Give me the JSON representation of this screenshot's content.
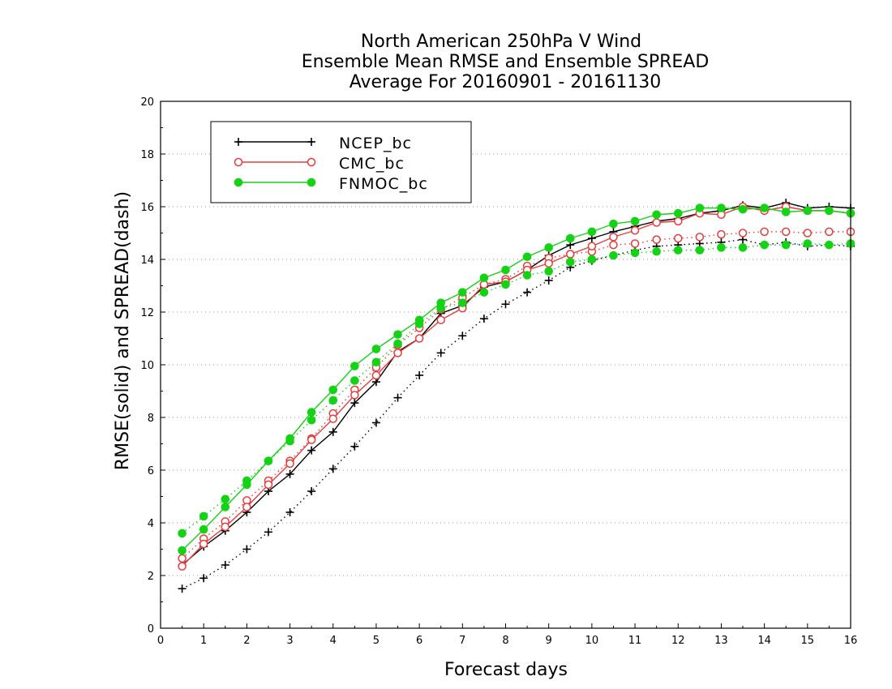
{
  "chart_data": {
    "type": "line",
    "title_lines": [
      "North American 250hPa V Wind",
      "Ensemble Mean RMSE and Ensemble SPREAD",
      "Average For 20160901 - 20161130"
    ],
    "xlabel": "Forecast days",
    "ylabel": "RMSE(solid) and SPREAD(dash)",
    "xlim": [
      0,
      16
    ],
    "ylim": [
      0,
      20
    ],
    "xticks": [
      "0",
      "1",
      "2",
      "3",
      "4",
      "5",
      "6",
      "7",
      "8",
      "9",
      "10",
      "11",
      "12",
      "13",
      "14",
      "15",
      "16"
    ],
    "yticks": [
      "0",
      "2",
      "4",
      "6",
      "8",
      "10",
      "12",
      "14",
      "16",
      "18",
      "20"
    ],
    "grid": true,
    "legend_position": "top-left",
    "x": [
      0.5,
      1,
      1.5,
      2,
      2.5,
      3,
      3.5,
      4,
      4.5,
      5,
      5.5,
      6,
      6.5,
      7,
      7.5,
      8,
      8.5,
      9,
      9.5,
      10,
      10.5,
      11,
      11.5,
      12,
      12.5,
      13,
      13.5,
      14,
      14.5,
      15,
      15.5,
      16
    ],
    "series": [
      {
        "name": "NCEP_bc",
        "color": "#000000",
        "marker": "plus",
        "rmse": [
          2.4,
          3.1,
          3.7,
          4.4,
          5.2,
          5.85,
          6.75,
          7.45,
          8.55,
          9.35,
          10.5,
          11.0,
          11.95,
          12.25,
          12.95,
          13.15,
          13.6,
          14.15,
          14.55,
          14.8,
          15.05,
          15.25,
          15.45,
          15.55,
          15.75,
          15.85,
          16.05,
          15.95,
          16.15,
          15.95,
          16.0,
          15.95
        ],
        "spread": [
          1.5,
          1.9,
          2.4,
          3.0,
          3.65,
          4.4,
          5.2,
          6.05,
          6.9,
          7.8,
          8.75,
          9.6,
          10.45,
          11.1,
          11.75,
          12.3,
          12.75,
          13.2,
          13.7,
          13.95,
          14.15,
          14.35,
          14.5,
          14.55,
          14.6,
          14.65,
          14.75,
          14.55,
          14.65,
          14.5,
          14.55,
          14.5
        ]
      },
      {
        "name": "CMC_bc",
        "color": "#e83c3c",
        "marker": "open-circle",
        "rmse": [
          2.35,
          3.2,
          3.85,
          4.6,
          5.45,
          6.25,
          7.15,
          7.95,
          8.85,
          9.6,
          10.45,
          11.0,
          11.7,
          12.15,
          13.05,
          13.15,
          13.6,
          13.85,
          14.2,
          14.5,
          14.85,
          15.1,
          15.4,
          15.45,
          15.75,
          15.7,
          16.0,
          15.85,
          16.0,
          15.85,
          15.85,
          15.75
        ],
        "spread": [
          2.65,
          3.4,
          4.05,
          4.85,
          5.6,
          6.35,
          7.2,
          8.15,
          9.05,
          9.9,
          10.75,
          11.4,
          12.1,
          12.55,
          13.05,
          13.25,
          13.75,
          14.05,
          14.2,
          14.3,
          14.55,
          14.6,
          14.75,
          14.8,
          14.85,
          14.95,
          15.0,
          15.05,
          15.05,
          15.0,
          15.05,
          15.05
        ]
      },
      {
        "name": "FNMOC_bc",
        "color": "#14d214",
        "marker": "filled-circle",
        "rmse": [
          2.95,
          3.75,
          4.6,
          5.45,
          6.35,
          7.2,
          8.2,
          9.05,
          9.95,
          10.6,
          11.15,
          11.7,
          12.35,
          12.75,
          13.3,
          13.6,
          14.1,
          14.45,
          14.8,
          15.05,
          15.35,
          15.45,
          15.7,
          15.75,
          15.95,
          15.95,
          15.9,
          15.95,
          15.8,
          15.85,
          15.85,
          15.75
        ],
        "spread": [
          3.6,
          4.25,
          4.9,
          5.6,
          6.35,
          7.1,
          7.9,
          8.65,
          9.4,
          10.1,
          10.8,
          11.55,
          12.15,
          12.35,
          12.75,
          13.05,
          13.4,
          13.55,
          13.9,
          14.0,
          14.15,
          14.25,
          14.3,
          14.35,
          14.35,
          14.45,
          14.45,
          14.55,
          14.55,
          14.6,
          14.55,
          14.6
        ]
      }
    ]
  }
}
